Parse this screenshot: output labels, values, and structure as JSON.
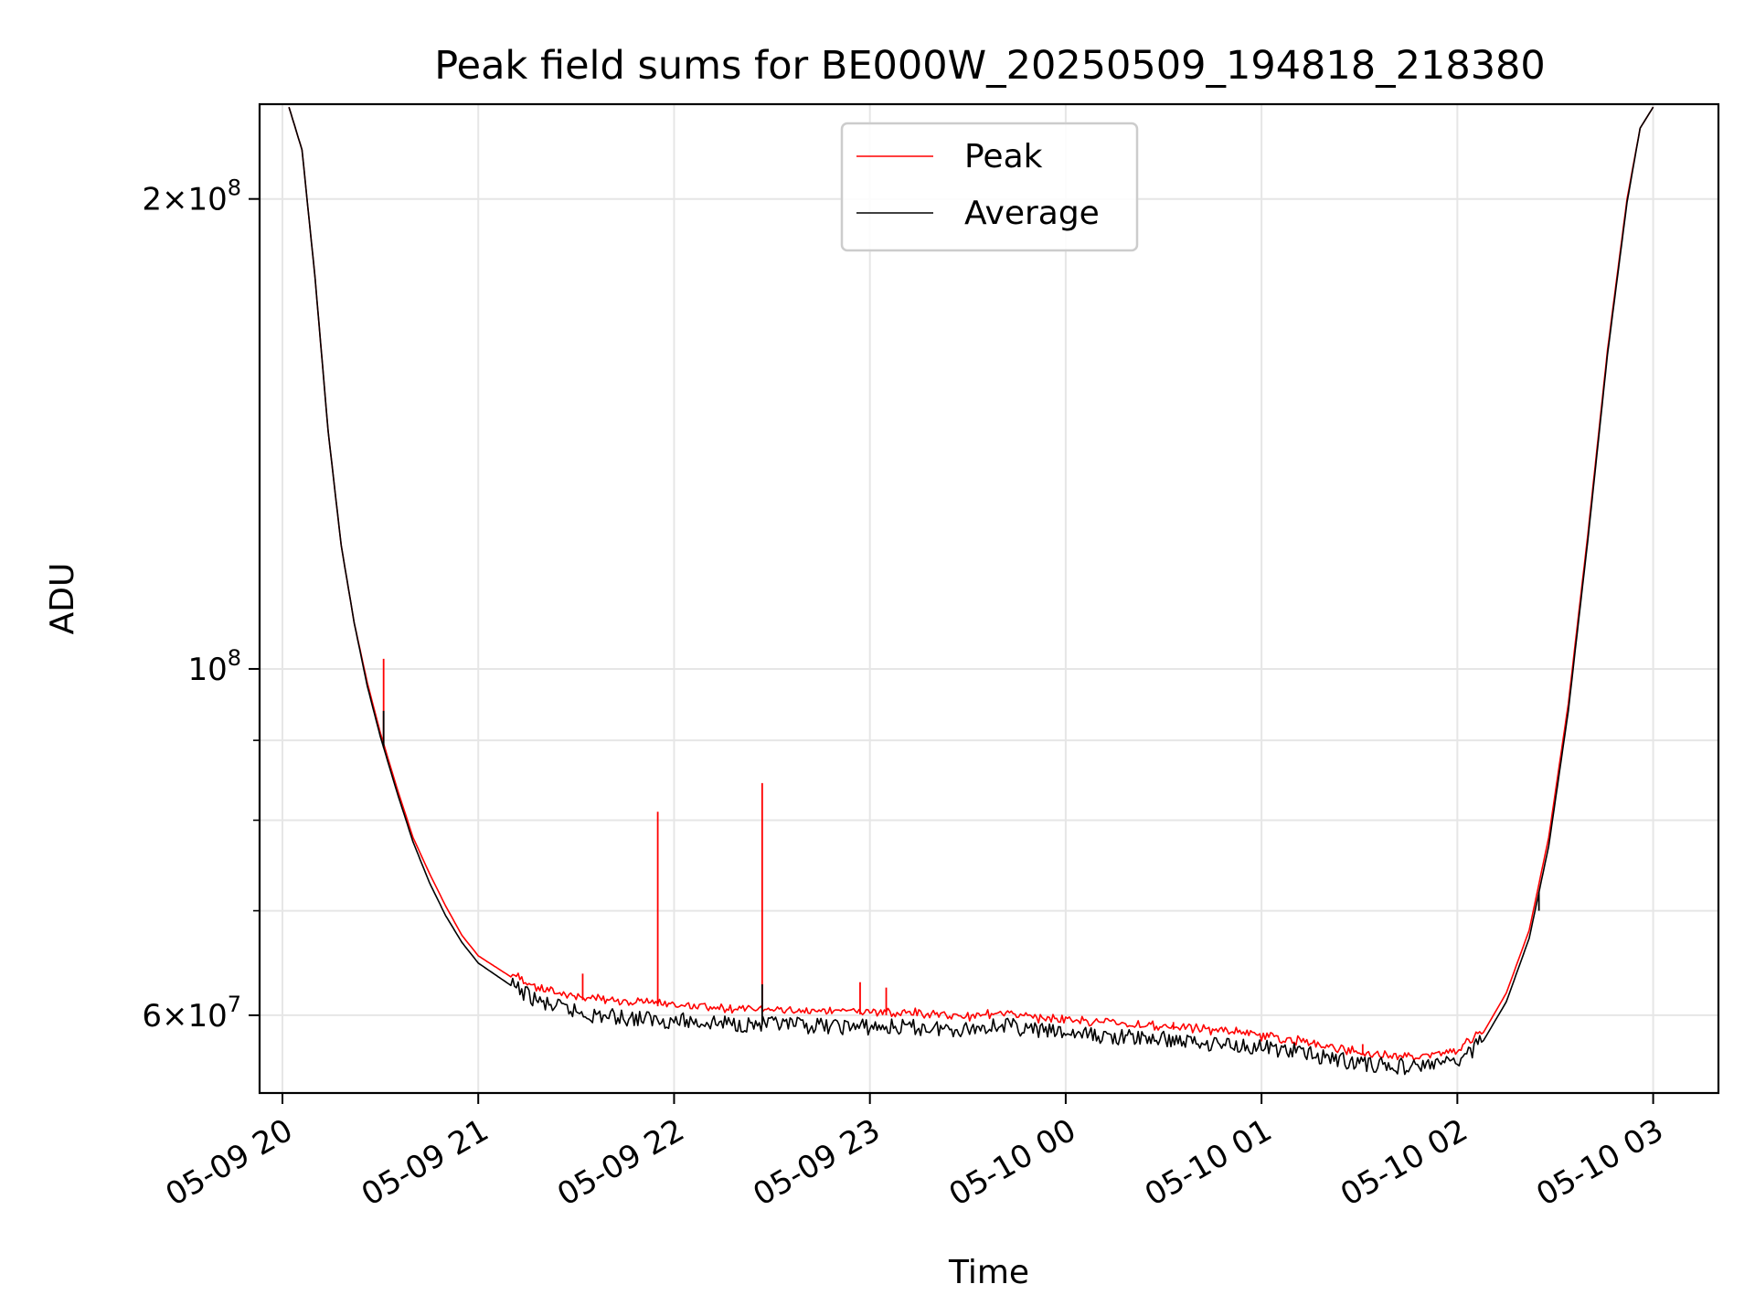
{
  "chart_data": {
    "type": "line",
    "title": "Peak field sums for BE000W_20250509_194818_218380",
    "xlabel": "Time",
    "ylabel": "ADU",
    "y_scale": "log",
    "ylim": [
      53500000,
      230000000
    ],
    "xlim": [
      "2025-05-09 19:53",
      "2025-05-10 03:20"
    ],
    "grid": true,
    "legend": {
      "position": "top-center"
    },
    "x_ticks": [
      {
        "label": "05-09 20",
        "value": "2025-05-09 20:00"
      },
      {
        "label": "05-09 21",
        "value": "2025-05-09 21:00"
      },
      {
        "label": "05-09 22",
        "value": "2025-05-09 22:00"
      },
      {
        "label": "05-09 23",
        "value": "2025-05-09 23:00"
      },
      {
        "label": "05-10 00",
        "value": "2025-05-10 00:00"
      },
      {
        "label": "05-10 01",
        "value": "2025-05-10 01:00"
      },
      {
        "label": "05-10 02",
        "value": "2025-05-10 02:00"
      },
      {
        "label": "05-10 03",
        "value": "2025-05-10 03:00"
      }
    ],
    "y_ticks": [
      {
        "base": "6",
        "exp": "7",
        "value": 60000000
      },
      {
        "base": "",
        "exp": "8",
        "value": 100000000
      },
      {
        "base": "2",
        "exp": "8",
        "value": 200000000
      }
    ],
    "y_minor_ticks": [
      70000000,
      80000000,
      90000000
    ],
    "series": [
      {
        "name": "Peak",
        "color": "#ff0000",
        "points": [
          [
            "2025-05-09 20:02",
            229000000
          ],
          [
            "2025-05-09 20:06",
            215000000
          ],
          [
            "2025-05-09 20:10",
            178000000
          ],
          [
            "2025-05-09 20:14",
            142000000
          ],
          [
            "2025-05-09 20:18",
            120000000
          ],
          [
            "2025-05-09 20:22",
            107000000
          ],
          [
            "2025-05-09 20:26",
            98000000
          ],
          [
            "2025-05-09 20:30",
            91000000
          ],
          [
            "2025-05-09 20:35",
            84000000
          ],
          [
            "2025-05-09 20:40",
            78000000
          ],
          [
            "2025-05-09 20:45",
            74000000
          ],
          [
            "2025-05-09 20:50",
            70500000
          ],
          [
            "2025-05-09 20:55",
            67500000
          ],
          [
            "2025-05-09 21:00",
            65500000
          ],
          [
            "2025-05-09 21:10",
            63500000
          ],
          [
            "2025-05-09 21:20",
            62000000
          ],
          [
            "2025-05-09 21:35",
            61200000
          ],
          [
            "2025-05-09 21:55",
            60800000
          ],
          [
            "2025-05-09 22:15",
            60400000
          ],
          [
            "2025-05-09 22:35",
            60200000
          ],
          [
            "2025-05-09 22:55",
            60100000
          ],
          [
            "2025-05-09 23:15",
            59900000
          ],
          [
            "2025-05-09 23:30",
            59700000
          ],
          [
            "2025-05-09 23:40",
            60000000
          ],
          [
            "2025-05-09 23:50",
            59600000
          ],
          [
            "2025-05-10 00:10",
            59200000
          ],
          [
            "2025-05-10 00:30",
            58800000
          ],
          [
            "2025-05-10 00:50",
            58400000
          ],
          [
            "2025-05-10 01:10",
            57600000
          ],
          [
            "2025-05-10 01:30",
            56600000
          ],
          [
            "2025-05-10 01:45",
            56200000
          ],
          [
            "2025-05-10 02:00",
            56800000
          ],
          [
            "2025-05-10 02:08",
            58500000
          ],
          [
            "2025-05-10 02:15",
            62000000
          ],
          [
            "2025-05-10 02:22",
            68000000
          ],
          [
            "2025-05-10 02:28",
            78000000
          ],
          [
            "2025-05-10 02:34",
            95000000
          ],
          [
            "2025-05-10 02:40",
            122000000
          ],
          [
            "2025-05-10 02:46",
            160000000
          ],
          [
            "2025-05-10 02:52",
            200000000
          ],
          [
            "2025-05-10 02:56",
            222000000
          ],
          [
            "2025-05-10 03:00",
            229000000
          ]
        ],
        "spikes": [
          [
            "2025-05-09 20:31",
            101500000
          ],
          [
            "2025-05-09 21:55",
            81000000
          ],
          [
            "2025-05-09 22:27",
            84500000
          ],
          [
            "2025-05-09 22:57",
            63000000
          ],
          [
            "2025-05-09 23:05",
            62500000
          ],
          [
            "2025-05-09 21:32",
            63800000
          ],
          [
            "2025-05-10 01:31",
            57500000
          ],
          [
            "2025-05-10 00:33",
            59400000
          ]
        ]
      },
      {
        "name": "Average",
        "color": "#000000",
        "points": [
          [
            "2025-05-09 20:02",
            229000000
          ],
          [
            "2025-05-09 20:06",
            215000000
          ],
          [
            "2025-05-09 20:10",
            178000000
          ],
          [
            "2025-05-09 20:14",
            142000000
          ],
          [
            "2025-05-09 20:18",
            120000000
          ],
          [
            "2025-05-09 20:22",
            107000000
          ],
          [
            "2025-05-09 20:26",
            97500000
          ],
          [
            "2025-05-09 20:30",
            90500000
          ],
          [
            "2025-05-09 20:35",
            83500000
          ],
          [
            "2025-05-09 20:40",
            77500000
          ],
          [
            "2025-05-09 20:45",
            73000000
          ],
          [
            "2025-05-09 20:50",
            69500000
          ],
          [
            "2025-05-09 20:55",
            66800000
          ],
          [
            "2025-05-09 21:00",
            64800000
          ],
          [
            "2025-05-09 21:10",
            62700000
          ],
          [
            "2025-05-09 21:20",
            61000000
          ],
          [
            "2025-05-09 21:35",
            60000000
          ],
          [
            "2025-05-09 21:55",
            59600000
          ],
          [
            "2025-05-09 22:15",
            59300000
          ],
          [
            "2025-05-09 22:35",
            59100000
          ],
          [
            "2025-05-09 22:55",
            59000000
          ],
          [
            "2025-05-09 23:15",
            58900000
          ],
          [
            "2025-05-09 23:30",
            58800000
          ],
          [
            "2025-05-09 23:40",
            59200000
          ],
          [
            "2025-05-09 23:50",
            58700000
          ],
          [
            "2025-05-10 00:10",
            58200000
          ],
          [
            "2025-05-10 00:30",
            57900000
          ],
          [
            "2025-05-10 00:50",
            57500000
          ],
          [
            "2025-05-10 01:10",
            56900000
          ],
          [
            "2025-05-10 01:30",
            55900000
          ],
          [
            "2025-05-10 01:45",
            55600000
          ],
          [
            "2025-05-10 02:00",
            56000000
          ],
          [
            "2025-05-10 02:08",
            57800000
          ],
          [
            "2025-05-10 02:15",
            61200000
          ],
          [
            "2025-05-10 02:22",
            67200000
          ],
          [
            "2025-05-10 02:28",
            77000000
          ],
          [
            "2025-05-10 02:34",
            94000000
          ],
          [
            "2025-05-10 02:40",
            121000000
          ],
          [
            "2025-05-10 02:46",
            159000000
          ],
          [
            "2025-05-10 02:52",
            199000000
          ],
          [
            "2025-05-10 02:56",
            222000000
          ],
          [
            "2025-05-10 03:00",
            229000000
          ]
        ],
        "spikes": [
          [
            "2025-05-09 20:31",
            94000000
          ],
          [
            "2025-05-09 22:27",
            62800000
          ],
          [
            "2025-05-10 02:25",
            70000000
          ]
        ]
      }
    ]
  }
}
